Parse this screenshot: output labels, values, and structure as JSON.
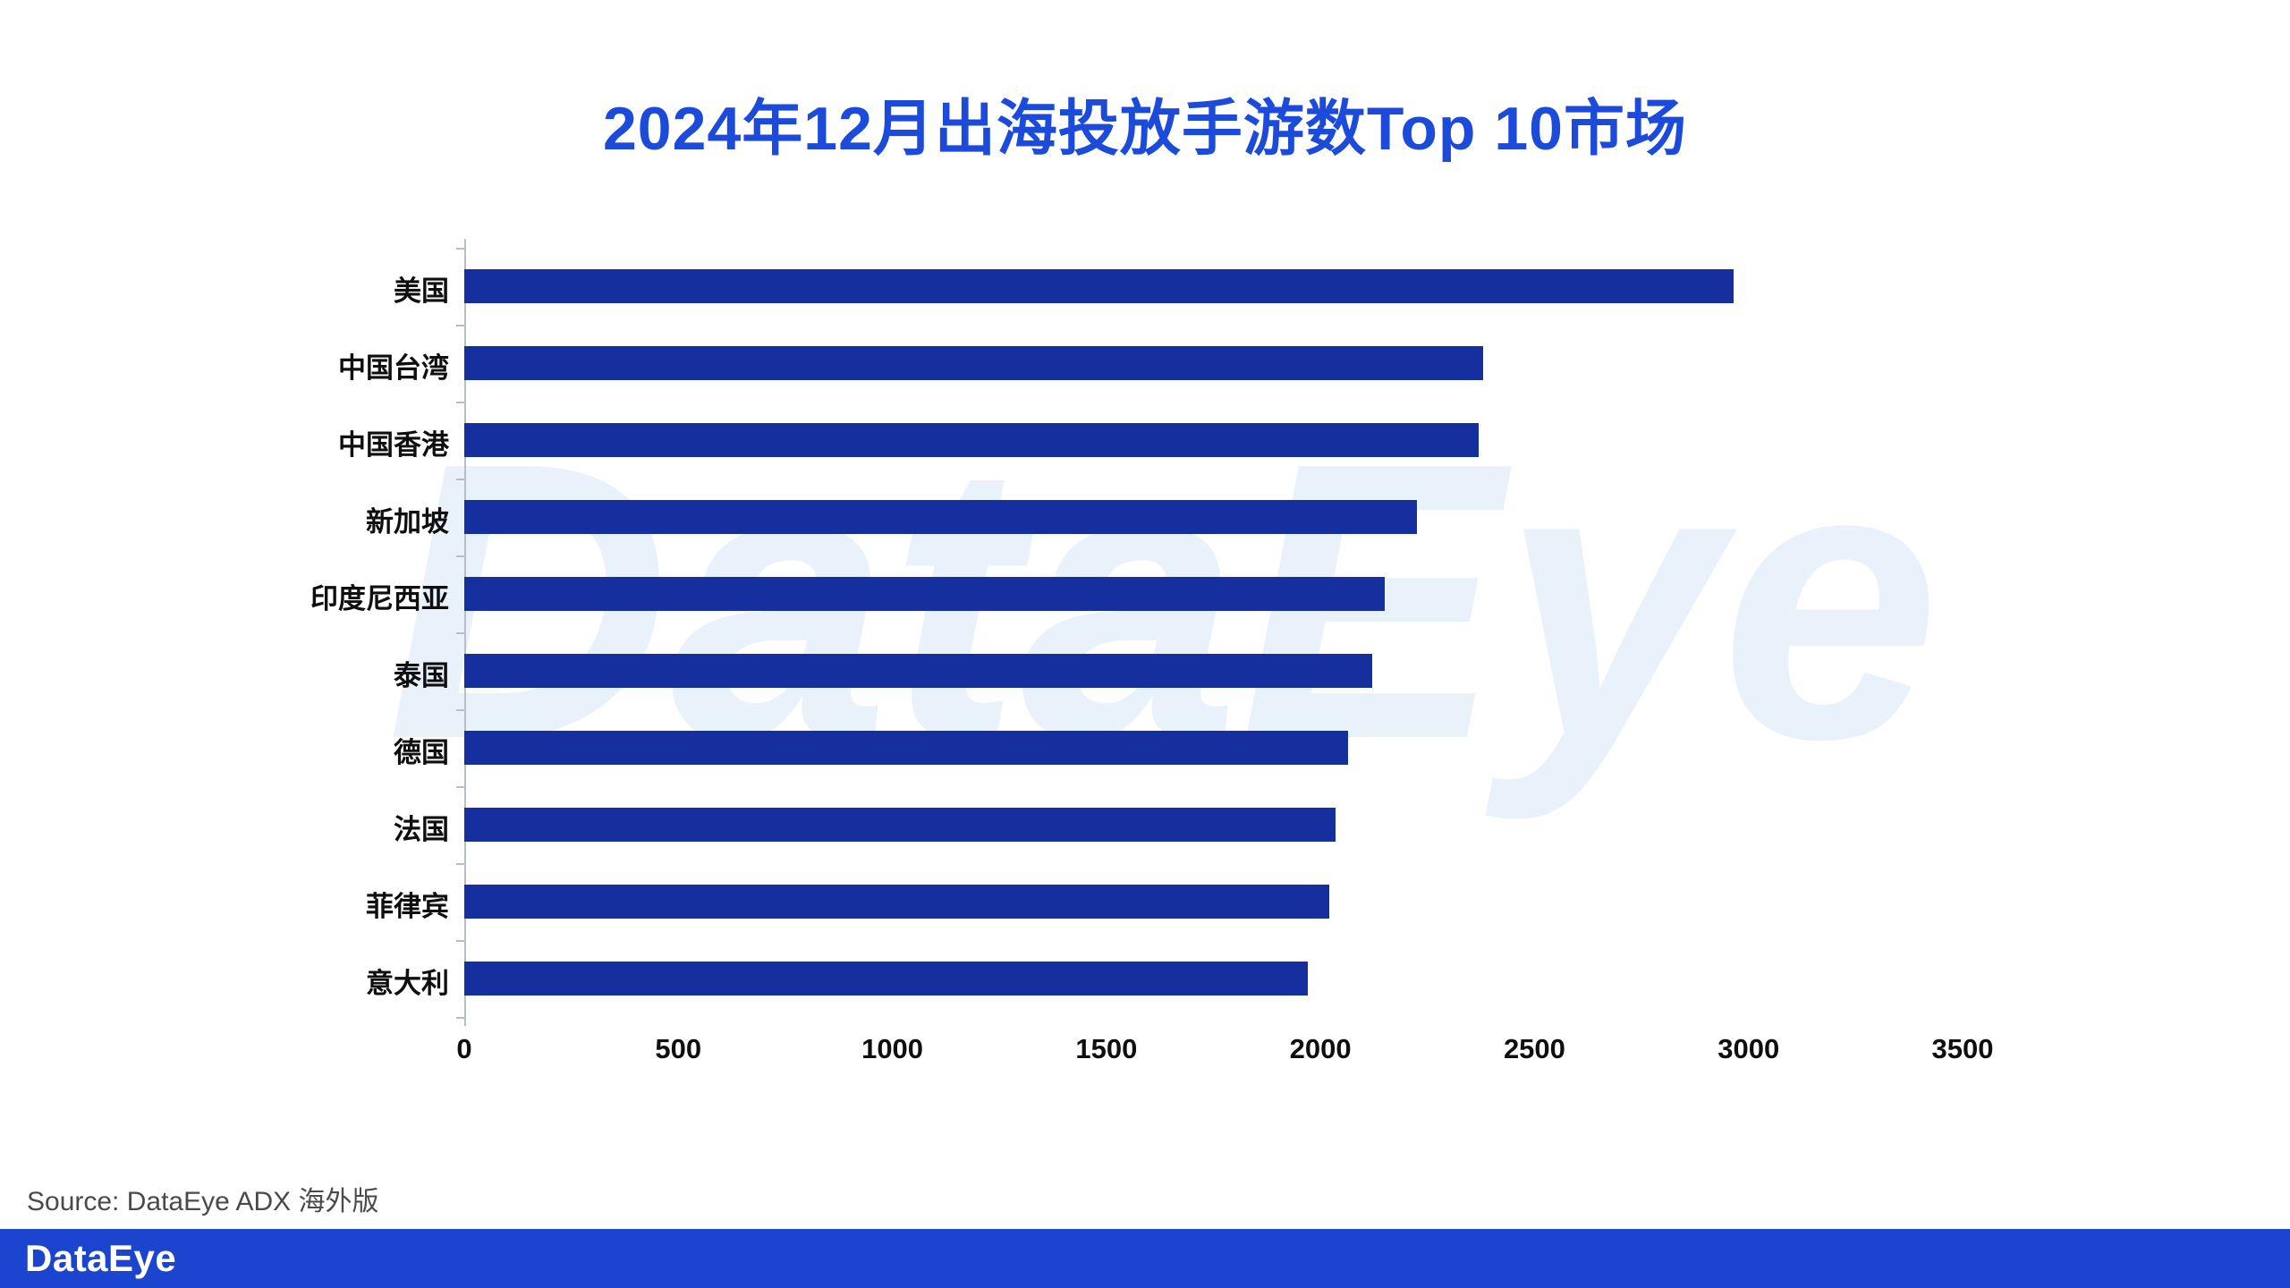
{
  "title": "2024年12月出海投放手游数Top 10市场",
  "watermark": "DataEye",
  "source": "Source: DataEye ADX 海外版",
  "footer": {
    "logo": "DataEye"
  },
  "colors": {
    "bar": "#15309e",
    "title": "#1c4bdc",
    "footer_bg": "#1c45cf",
    "watermark": "#e9f1fb",
    "axis": "#b7bdc9",
    "text": "#0f0f0f",
    "source_text": "#4a4a4a"
  },
  "chart_data": {
    "type": "bar",
    "orientation": "horizontal",
    "title": "2024年12月出海投放手游数Top 10市场",
    "categories": [
      "美国",
      "中国台湾",
      "中国香港",
      "新加坡",
      "印度尼西亚",
      "泰国",
      "德国",
      "法国",
      "菲律宾",
      "意大利"
    ],
    "values": [
      2965,
      2380,
      2370,
      2225,
      2150,
      2120,
      2065,
      2035,
      2020,
      1970
    ],
    "xlabel": "",
    "ylabel": "",
    "xlim": [
      0,
      3500
    ],
    "xticks": [
      0,
      500,
      1000,
      1500,
      2000,
      2500,
      3000,
      3500
    ],
    "grid": false,
    "legend": false
  }
}
